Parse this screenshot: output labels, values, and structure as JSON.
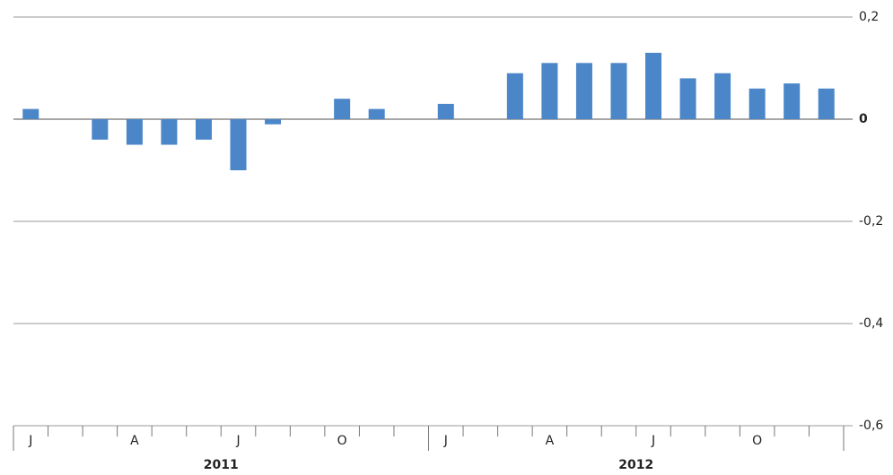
{
  "chart_data": {
    "type": "bar",
    "categories": [
      "J",
      null,
      null,
      "A",
      null,
      null,
      "J",
      null,
      null,
      "O",
      null,
      null,
      "J",
      null,
      null,
      "A",
      null,
      null,
      "J",
      null,
      null,
      "O",
      null,
      null
    ],
    "year_labels": [
      "2011",
      "2012"
    ],
    "values": [
      0.02,
      0,
      -0.04,
      -0.05,
      -0.05,
      -0.04,
      -0.1,
      -0.01,
      0,
      0.04,
      0.02,
      0,
      0.03,
      0,
      0.09,
      0.11,
      0.11,
      0.11,
      0.13,
      0.08,
      0.09,
      0.06,
      0.07,
      0.06
    ],
    "color": "#4a86c8",
    "ylim": [
      -0.6,
      0.2
    ],
    "yticks": [
      {
        "value": -0.6,
        "label": "-0,6"
      },
      {
        "value": -0.4,
        "label": "-0,4"
      },
      {
        "value": -0.2,
        "label": "-0,2"
      },
      0,
      {
        "value": 0.2,
        "label": "0,2"
      }
    ],
    "grid": true
  }
}
